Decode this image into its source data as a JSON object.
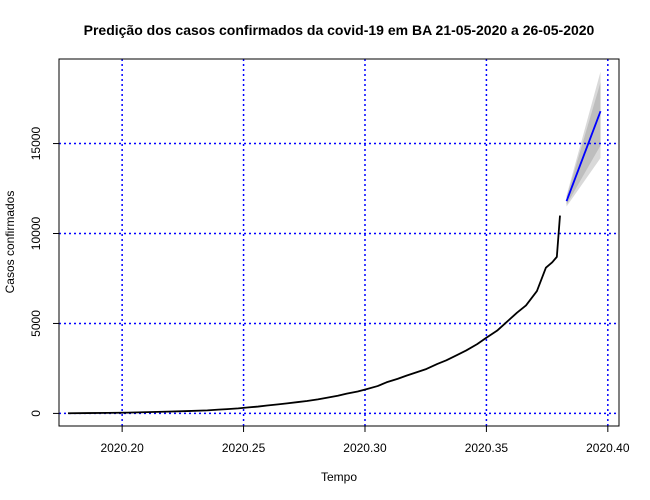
{
  "chart_data": {
    "type": "line",
    "title": "Predição dos casos confirmados da covid-19 em BA 21-05-2020 a 26-05-2020",
    "xlabel": "Tempo",
    "ylabel": "Casos confirmados",
    "xlim": [
      2020.174,
      2020.4046
    ],
    "ylim": [
      -700,
      19700
    ],
    "x_ticks": [
      2020.2,
      2020.25,
      2020.3,
      2020.35,
      2020.4
    ],
    "x_tick_labels": [
      "2020.20",
      "2020.25",
      "2020.30",
      "2020.35",
      "2020.40"
    ],
    "y_ticks": [
      0,
      5000,
      10000,
      15000
    ],
    "y_tick_labels": [
      "0",
      "5000",
      "10000",
      "15000"
    ],
    "grid": "dotted",
    "colors": {
      "grid": "#0000ff",
      "observed": "#000000",
      "forecast": "#0000ff",
      "band_outer": "#d9d9d9",
      "band_inner": "#bebebe"
    },
    "series": [
      {
        "name": "",
        "role": "observed",
        "x": [
          2020.1777,
          2020.1859,
          2020.1941,
          2020.2023,
          2020.2105,
          2020.2187,
          2020.2269,
          2020.2351,
          2020.2396,
          2020.2433,
          2020.2478,
          2020.2515,
          2020.256,
          2020.2597,
          2020.2642,
          2020.2679,
          2020.2724,
          2020.2761,
          2020.2806,
          2020.2843,
          2020.2888,
          2020.2925,
          2020.297,
          2020.3007,
          2020.3052,
          2020.3089,
          2020.3134,
          2020.3171,
          2020.3216,
          2020.3253,
          2020.3298,
          2020.3335,
          2020.338,
          2020.3417,
          2020.3462,
          2020.3499,
          2020.3544,
          2020.3581,
          2020.3626,
          2020.3663,
          2020.3708,
          2020.3745,
          2020.3771,
          2020.379,
          2020.3803
        ],
        "y": [
          10,
          20,
          30,
          45,
          70,
          100,
          130,
          170,
          210,
          240,
          280,
          330,
          380,
          440,
          500,
          560,
          630,
          690,
          780,
          870,
          980,
          1100,
          1220,
          1350,
          1520,
          1730,
          1920,
          2100,
          2300,
          2470,
          2750,
          2950,
          3250,
          3500,
          3850,
          4200,
          4600,
          5050,
          5600,
          6000,
          6800,
          8100,
          8400,
          8700,
          11000
        ]
      },
      {
        "name": "",
        "role": "forecast",
        "x": [
          2020.383,
          2020.397
        ],
        "y": [
          11800,
          16800
        ]
      }
    ],
    "prediction_band": {
      "x": [
        2020.383,
        2020.397
      ],
      "inner_lower": [
        11600,
        14900
      ],
      "inner_upper": [
        12000,
        18400
      ],
      "outer_lower": [
        11500,
        14200
      ],
      "outer_upper": [
        12100,
        19000
      ]
    }
  }
}
